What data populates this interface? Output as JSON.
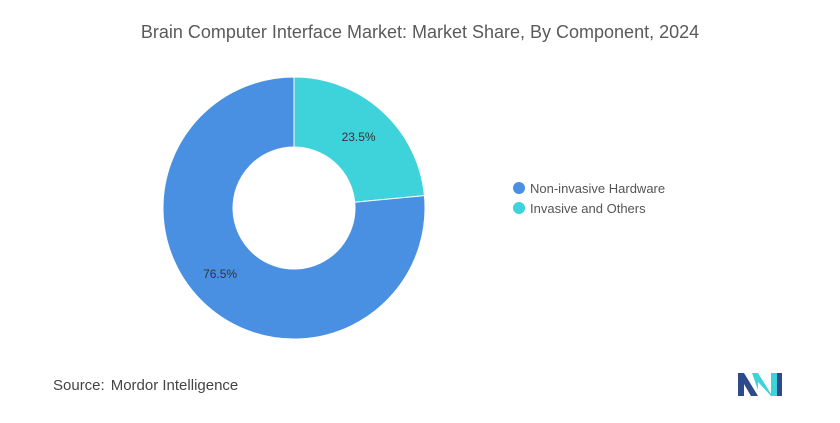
{
  "chart_data": {
    "type": "pie",
    "variant": "donut",
    "title": "Brain Computer Interface Market: Market Share, By Component, 2024",
    "categories": [
      "Non-invasive Hardware",
      "Invasive and Others"
    ],
    "values": [
      76.5,
      23.5
    ],
    "data_labels": [
      "76.5%",
      "23.5%"
    ],
    "colors": [
      "#4a90e2",
      "#3ed2db"
    ],
    "legend_position": "right"
  },
  "legend": {
    "items": [
      {
        "label": "Non-invasive Hardware",
        "color": "#4a90e2"
      },
      {
        "label": "Invasive and Others",
        "color": "#3ed2db"
      }
    ]
  },
  "source": {
    "label": "Source:",
    "text": "Mordor Intelligence"
  },
  "logo": {
    "icon": "mordor-intelligence-logo",
    "colors": [
      "#2c4a8c",
      "#3ed2db"
    ]
  }
}
